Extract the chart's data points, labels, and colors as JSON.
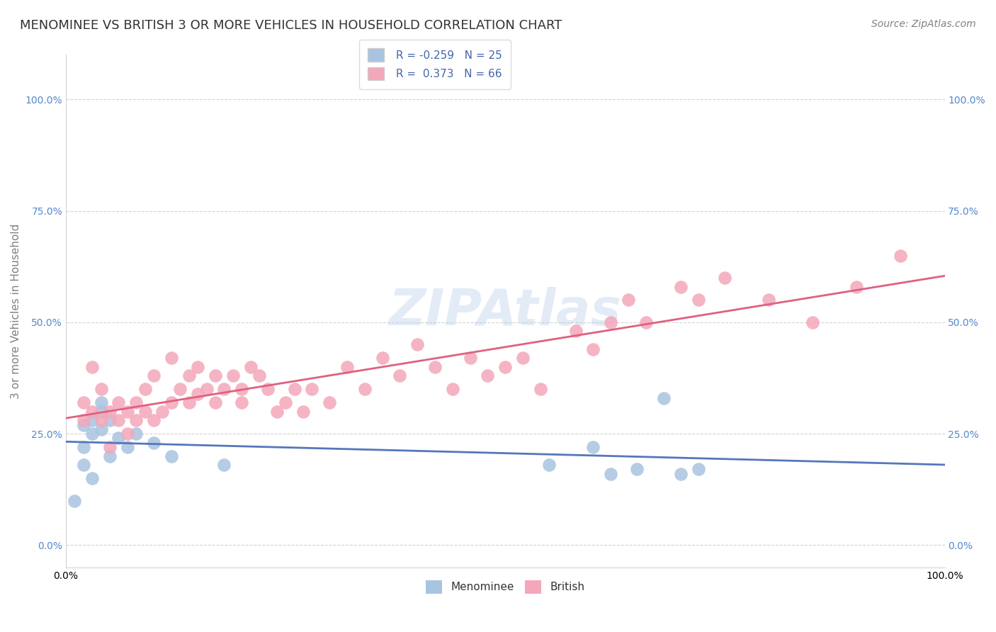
{
  "title": "MENOMINEE VS BRITISH 3 OR MORE VEHICLES IN HOUSEHOLD CORRELATION CHART",
  "source": "Source: ZipAtlas.com",
  "ylabel": "3 or more Vehicles in Household",
  "xlim": [
    0,
    1.0
  ],
  "ylim": [
    -0.05,
    1.1
  ],
  "xtick_labels": [
    "0.0%",
    "100.0%"
  ],
  "ytick_labels": [
    "0.0%",
    "25.0%",
    "50.0%",
    "75.0%",
    "100.0%"
  ],
  "ytick_positions": [
    0.0,
    0.25,
    0.5,
    0.75,
    1.0
  ],
  "menominee_color": "#a8c4e0",
  "british_color": "#f4a7b9",
  "line_menominee_color": "#5577bb",
  "line_british_color": "#e06080",
  "menominee_scatter_x": [
    0.02,
    0.01,
    0.03,
    0.04,
    0.02,
    0.03,
    0.05,
    0.04,
    0.02,
    0.03,
    0.04,
    0.06,
    0.05,
    0.07,
    0.08,
    0.1,
    0.12,
    0.18,
    0.55,
    0.6,
    0.62,
    0.65,
    0.68,
    0.7,
    0.72
  ],
  "menominee_scatter_y": [
    0.18,
    0.1,
    0.25,
    0.3,
    0.22,
    0.28,
    0.2,
    0.32,
    0.27,
    0.15,
    0.26,
    0.24,
    0.28,
    0.22,
    0.25,
    0.23,
    0.2,
    0.18,
    0.18,
    0.22,
    0.16,
    0.17,
    0.33,
    0.16,
    0.17
  ],
  "british_scatter_x": [
    0.02,
    0.02,
    0.03,
    0.03,
    0.04,
    0.04,
    0.05,
    0.05,
    0.06,
    0.06,
    0.07,
    0.07,
    0.08,
    0.08,
    0.09,
    0.09,
    0.1,
    0.1,
    0.11,
    0.12,
    0.12,
    0.13,
    0.14,
    0.14,
    0.15,
    0.15,
    0.16,
    0.17,
    0.17,
    0.18,
    0.19,
    0.2,
    0.2,
    0.21,
    0.22,
    0.23,
    0.24,
    0.25,
    0.26,
    0.27,
    0.28,
    0.3,
    0.32,
    0.34,
    0.36,
    0.38,
    0.4,
    0.42,
    0.44,
    0.46,
    0.48,
    0.5,
    0.52,
    0.54,
    0.58,
    0.6,
    0.62,
    0.64,
    0.66,
    0.7,
    0.72,
    0.75,
    0.8,
    0.85,
    0.9,
    0.95
  ],
  "british_scatter_y": [
    0.28,
    0.32,
    0.3,
    0.4,
    0.28,
    0.35,
    0.3,
    0.22,
    0.32,
    0.28,
    0.3,
    0.25,
    0.32,
    0.28,
    0.3,
    0.35,
    0.28,
    0.38,
    0.3,
    0.32,
    0.42,
    0.35,
    0.38,
    0.32,
    0.34,
    0.4,
    0.35,
    0.38,
    0.32,
    0.35,
    0.38,
    0.32,
    0.35,
    0.4,
    0.38,
    0.35,
    0.3,
    0.32,
    0.35,
    0.3,
    0.35,
    0.32,
    0.4,
    0.35,
    0.42,
    0.38,
    0.45,
    0.4,
    0.35,
    0.42,
    0.38,
    0.4,
    0.42,
    0.35,
    0.48,
    0.44,
    0.5,
    0.55,
    0.5,
    0.58,
    0.55,
    0.6,
    0.55,
    0.5,
    0.58,
    0.65
  ],
  "title_fontsize": 13,
  "axis_fontsize": 11,
  "tick_fontsize": 10,
  "legend_fontsize": 11,
  "source_fontsize": 10
}
